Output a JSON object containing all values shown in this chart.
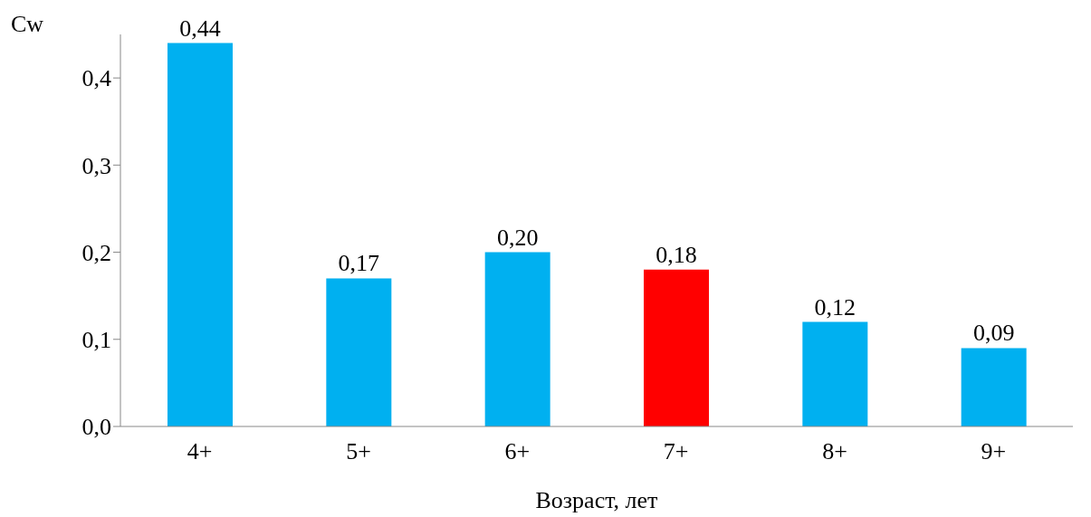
{
  "chart_data": {
    "type": "bar",
    "ylabel": "Cw",
    "xlabel": "Возраст, лет",
    "categories": [
      "4+",
      "5+",
      "6+",
      "7+",
      "8+",
      "9+"
    ],
    "values": [
      0.44,
      0.17,
      0.2,
      0.18,
      0.12,
      0.09
    ],
    "colors": [
      "#00b0f0",
      "#00b0f0",
      "#00b0f0",
      "#ff0000",
      "#00b0f0",
      "#00b0f0"
    ],
    "value_labels": [
      "0,44",
      "0,17",
      "0,20",
      "0,18",
      "0,12",
      "0,09"
    ],
    "ylim": [
      0,
      0.45
    ],
    "yticks": [
      {
        "value": 0,
        "label": "0,0"
      },
      {
        "value": 0.1,
        "label": "0,1"
      },
      {
        "value": 0.2,
        "label": "0,2"
      },
      {
        "value": 0.3,
        "label": "0,3"
      },
      {
        "value": 0.4,
        "label": "0,4"
      }
    ],
    "grid": false,
    "legend": false
  }
}
